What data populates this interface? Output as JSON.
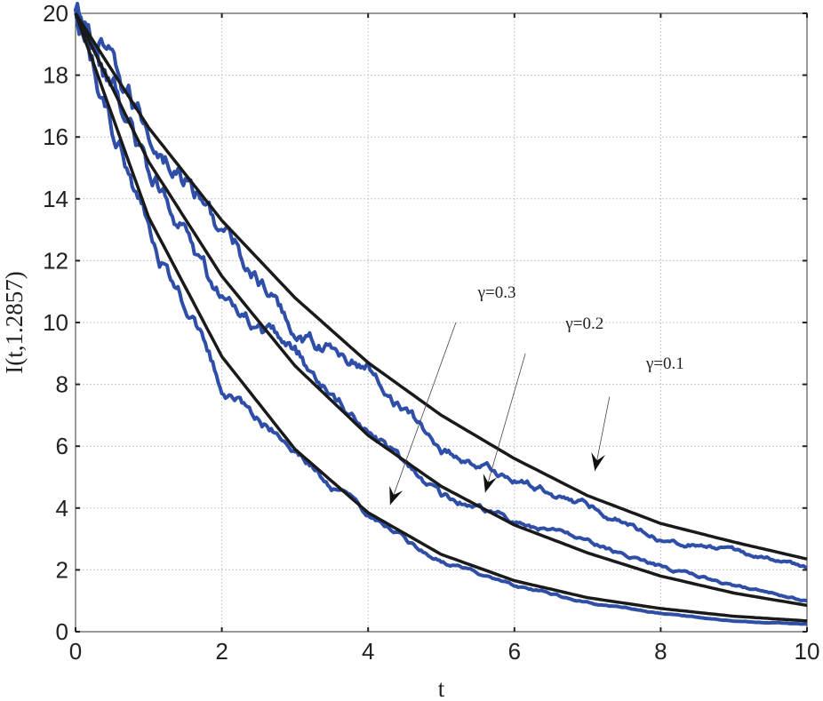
{
  "chart_data": {
    "type": "line",
    "title": "",
    "xlabel": "t",
    "ylabel": "I(t,1.2857)",
    "xlim": [
      0,
      10
    ],
    "ylim": [
      0,
      20
    ],
    "xticks": [
      "0",
      "2",
      "4",
      "6",
      "8",
      "10"
    ],
    "yticks": [
      "0",
      "2",
      "4",
      "6",
      "8",
      "10",
      "12",
      "14",
      "16",
      "18",
      "20"
    ],
    "grid": true,
    "colors": {
      "deterministic": "#1a1a1a",
      "stochastic": "#2e4ea8",
      "grid": "#c8c8c8"
    },
    "series": [
      {
        "group": "deterministic",
        "gamma": 0.1,
        "x": [
          0,
          1,
          2,
          3,
          4,
          5,
          6,
          7,
          8,
          9,
          10
        ],
        "y": [
          20,
          16.3,
          13.3,
          10.8,
          8.7,
          7.0,
          5.6,
          4.4,
          3.5,
          2.9,
          2.35
        ]
      },
      {
        "group": "deterministic",
        "gamma": 0.2,
        "x": [
          0,
          1,
          2,
          3,
          4,
          5,
          6,
          7,
          8,
          9,
          10
        ],
        "y": [
          20,
          15.2,
          11.5,
          8.6,
          6.35,
          4.7,
          3.45,
          2.55,
          1.8,
          1.25,
          0.85
        ]
      },
      {
        "group": "deterministic",
        "gamma": 0.3,
        "x": [
          0,
          1,
          2,
          3,
          4,
          5,
          6,
          7,
          8,
          9,
          10
        ],
        "y": [
          20,
          13.4,
          8.9,
          5.9,
          3.85,
          2.5,
          1.65,
          1.1,
          0.75,
          0.5,
          0.35
        ]
      },
      {
        "group": "stochastic",
        "gamma": 0.1,
        "x": [
          0,
          1,
          2,
          3,
          4,
          5,
          6,
          7,
          8,
          9,
          10
        ],
        "y": [
          20,
          16.2,
          13.0,
          9.7,
          8.5,
          5.9,
          4.9,
          4.1,
          3.0,
          2.6,
          2.1
        ]
      },
      {
        "group": "stochastic",
        "gamma": 0.2,
        "x": [
          0,
          1,
          2,
          3,
          4,
          5,
          6,
          7,
          8,
          9,
          10
        ],
        "y": [
          20,
          15.0,
          10.8,
          9.0,
          6.4,
          4.4,
          3.6,
          2.9,
          2.1,
          1.5,
          1.0
        ]
      },
      {
        "group": "stochastic",
        "gamma": 0.3,
        "x": [
          0,
          1,
          2,
          3,
          4,
          5,
          6,
          7,
          8,
          9,
          10
        ],
        "y": [
          20,
          13.0,
          8.0,
          5.8,
          3.7,
          2.3,
          1.5,
          0.95,
          0.6,
          0.35,
          0.25
        ]
      }
    ],
    "annotations": [
      {
        "text": "γ=0.3",
        "text_x": 5.5,
        "text_y": 10.8,
        "from_x": 5.2,
        "from_y": 10.0,
        "to_x": 4.3,
        "to_y": 4.1
      },
      {
        "text": "γ=0.2",
        "text_x": 6.7,
        "text_y": 9.8,
        "from_x": 6.15,
        "from_y": 9.0,
        "to_x": 5.6,
        "to_y": 4.5
      },
      {
        "text": "γ=0.1",
        "text_x": 7.8,
        "text_y": 8.5,
        "from_x": 7.3,
        "from_y": 7.6,
        "to_x": 7.1,
        "to_y": 5.2
      }
    ]
  }
}
